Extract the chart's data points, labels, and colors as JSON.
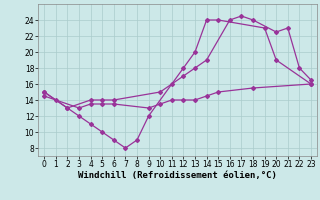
{
  "background_color": "#cce8e8",
  "grid_color": "#aacccc",
  "line_color": "#993399",
  "marker": "D",
  "marker_size": 2.0,
  "linewidth": 0.9,
  "xlabel": "Windchill (Refroidissement éolien,°C)",
  "xlabel_fontsize": 6.5,
  "tick_fontsize": 5.5,
  "xlim": [
    -0.5,
    23.5
  ],
  "ylim": [
    7.0,
    26.0
  ],
  "yticks": [
    8,
    10,
    12,
    14,
    16,
    18,
    20,
    22,
    24
  ],
  "xticks": [
    0,
    1,
    2,
    3,
    4,
    5,
    6,
    7,
    8,
    9,
    10,
    11,
    12,
    13,
    14,
    15,
    16,
    17,
    18,
    19,
    20,
    21,
    22,
    23
  ],
  "s1_x": [
    0,
    1,
    2,
    3,
    4,
    5,
    6,
    7,
    8,
    9,
    12,
    13,
    14,
    15,
    19,
    20,
    23
  ],
  "s1_y": [
    15,
    14,
    13,
    12,
    11,
    10,
    9,
    8,
    9,
    12,
    18,
    20,
    24,
    24,
    23,
    19,
    16
  ],
  "s2_x": [
    0,
    2,
    4,
    5,
    6,
    10,
    11,
    12,
    13,
    14,
    16,
    17,
    18,
    20,
    21,
    22,
    23
  ],
  "s2_y": [
    15,
    13,
    14,
    14,
    14,
    15,
    16,
    17,
    18,
    19,
    24,
    24.5,
    24,
    22.5,
    23,
    18,
    16.5
  ],
  "s3_x": [
    0,
    3,
    4,
    5,
    6,
    9,
    10,
    11,
    12,
    13,
    14,
    15,
    18,
    23
  ],
  "s3_y": [
    14.5,
    13,
    13.5,
    13.5,
    13.5,
    13,
    13.5,
    14,
    14,
    14,
    14.5,
    15,
    15.5,
    16
  ]
}
